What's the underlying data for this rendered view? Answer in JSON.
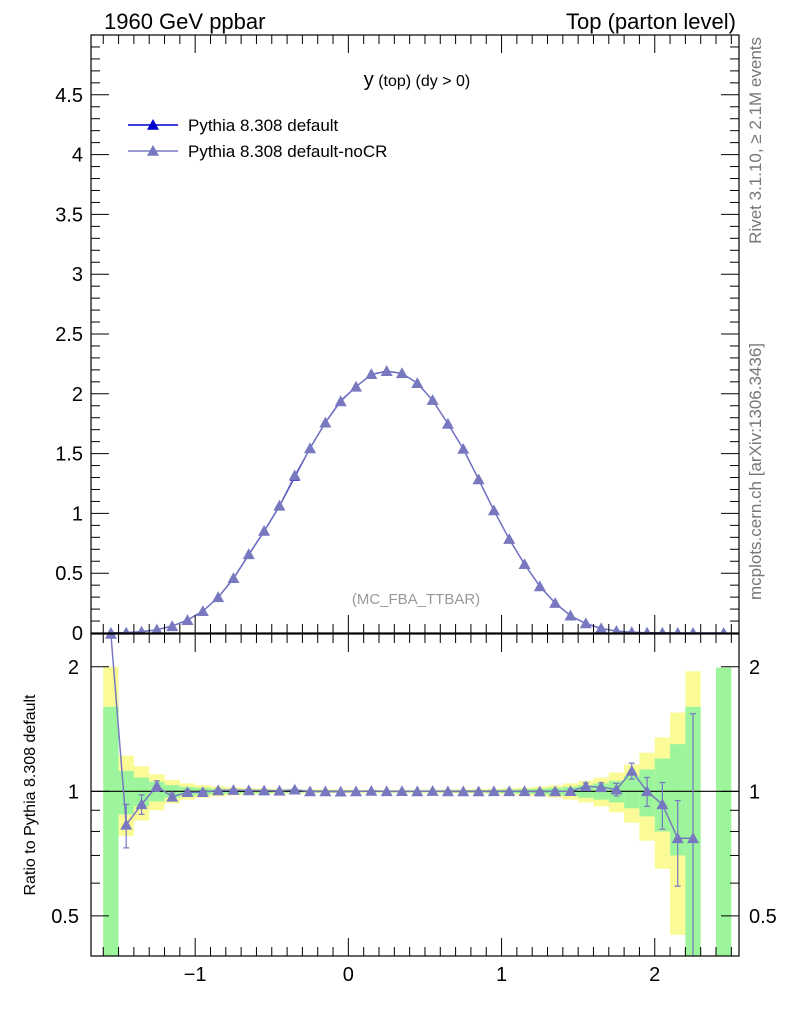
{
  "header": {
    "left": "1960 GeV ppbar",
    "right": "Top (parton level)"
  },
  "side_labels": {
    "rivet": "Rivet 3.1.10, ≥ 2.1M events",
    "mcplots": "mcplots.cern.ch [arXiv:1306.3436]"
  },
  "plot_title": {
    "main": "y",
    "sub": " (top) (dy > 0)"
  },
  "watermark": "(MC_FBA_TTBAR)",
  "ratio_ylabel": "Ratio to Pythia 8.308 default",
  "colors": {
    "default": "#0000cc",
    "nocr": "#7878c0",
    "band_green": "#9cf59c",
    "band_yellow": "#fafa96"
  },
  "chart_data": [
    {
      "type": "line",
      "xlim": [
        -1.68,
        2.55
      ],
      "ylim": [
        0,
        5
      ],
      "yticks": [
        0,
        0.5,
        1,
        1.5,
        2,
        2.5,
        3,
        3.5,
        4,
        4.5
      ],
      "yticklabels": [
        "0",
        "0.5",
        "1",
        "1.5",
        "2",
        "2.5",
        "3",
        "3.5",
        "4",
        "4.5"
      ],
      "legend_position": "top-left",
      "x": [
        -1.55,
        -1.45,
        -1.35,
        -1.25,
        -1.15,
        -1.05,
        -0.95,
        -0.85,
        -0.75,
        -0.65,
        -0.55,
        -0.45,
        -0.35,
        -0.25,
        -0.15,
        -0.05,
        0.05,
        0.15,
        0.25,
        0.35,
        0.45,
        0.55,
        0.65,
        0.75,
        0.85,
        0.95,
        1.05,
        1.15,
        1.25,
        1.35,
        1.45,
        1.55,
        1.65,
        1.75,
        1.85,
        1.95,
        2.05,
        2.15,
        2.25,
        2.45
      ],
      "series": [
        {
          "name": "Pythia 8.308 default",
          "values": [
            0.0005,
            0.003,
            0.011,
            0.027,
            0.058,
            0.108,
            0.183,
            0.297,
            0.455,
            0.655,
            0.85,
            1.06,
            1.305,
            1.545,
            1.76,
            1.94,
            2.06,
            2.16,
            2.19,
            2.17,
            2.09,
            1.945,
            1.75,
            1.54,
            1.285,
            1.025,
            0.785,
            0.575,
            0.39,
            0.25,
            0.145,
            0.078,
            0.038,
            0.016,
            0.006,
            0.002,
            0.0007,
            0.0002,
            5e-05,
            1e-05
          ]
        },
        {
          "name": "Pythia 8.308 default-noCR",
          "values": [
            0.0012,
            0.0025,
            0.0102,
            0.0278,
            0.0562,
            0.1074,
            0.1819,
            0.2988,
            0.4582,
            0.6582,
            0.853,
            1.0636,
            1.3165,
            1.5435,
            1.7582,
            1.9363,
            2.0584,
            2.164,
            2.1893,
            2.1715,
            2.089,
            1.9473,
            1.7484,
            1.5387,
            1.2842,
            1.0247,
            0.7849,
            0.5752,
            0.3894,
            0.2499,
            0.1451,
            0.0802,
            0.0389,
            0.0162,
            0.0067,
            0.002,
            0.00065,
            0.00015,
            3.9e-05,
            1e-05
          ]
        }
      ]
    },
    {
      "type": "line",
      "xlim": [
        -1.68,
        2.55
      ],
      "ylim": [
        0.4,
        2.4
      ],
      "log_scale_y": true,
      "yticks": [
        0.5,
        1,
        2
      ],
      "yticklabels": [
        "0.5",
        "1",
        "2"
      ],
      "xticks": [
        -1,
        0,
        1,
        2
      ],
      "xticklabels": [
        "−1",
        "0",
        "1",
        "2"
      ],
      "ylabel": "Ratio to Pythia 8.308 default",
      "x": [
        -1.55,
        -1.45,
        -1.35,
        -1.25,
        -1.15,
        -1.05,
        -0.95,
        -0.85,
        -0.75,
        -0.65,
        -0.55,
        -0.45,
        -0.35,
        -0.25,
        -0.15,
        -0.05,
        0.05,
        0.15,
        0.25,
        0.35,
        0.45,
        0.55,
        0.65,
        0.75,
        0.85,
        0.95,
        1.05,
        1.15,
        1.25,
        1.35,
        1.45,
        1.55,
        1.65,
        1.75,
        1.85,
        1.95,
        2.05,
        2.15,
        2.25,
        2.45
      ],
      "band_green": [
        0.6,
        0.12,
        0.08,
        0.055,
        0.035,
        0.025,
        0.02,
        0.015,
        0.012,
        0.01,
        0.01,
        0.008,
        0.008,
        0.006,
        0.006,
        0.005,
        0.005,
        0.005,
        0.005,
        0.005,
        0.005,
        0.005,
        0.006,
        0.006,
        0.007,
        0.008,
        0.01,
        0.012,
        0.015,
        0.02,
        0.025,
        0.035,
        0.045,
        0.06,
        0.09,
        0.13,
        0.2,
        0.3,
        0.6,
        0.99
      ],
      "band_yellow": [
        1.0,
        0.22,
        0.15,
        0.1,
        0.065,
        0.045,
        0.035,
        0.028,
        0.022,
        0.018,
        0.016,
        0.014,
        0.012,
        0.01,
        0.01,
        0.009,
        0.009,
        0.009,
        0.009,
        0.009,
        0.009,
        0.01,
        0.01,
        0.011,
        0.012,
        0.014,
        0.017,
        0.02,
        0.026,
        0.034,
        0.045,
        0.06,
        0.08,
        0.11,
        0.16,
        0.24,
        0.35,
        0.55,
        0.95,
        0.99
      ],
      "series": [
        {
          "name": "Pythia 8.308 default-noCR",
          "values": [
            2.4,
            0.83,
            0.93,
            1.03,
            0.97,
            0.995,
            0.995,
            1.005,
            1.007,
            1.005,
            1.004,
            1.003,
            1.009,
            0.999,
            0.999,
            0.998,
            0.999,
            1.002,
            0.9997,
            1.0007,
            0.9995,
            1.0012,
            0.9991,
            0.9992,
            0.9994,
            0.9997,
            0.9999,
            1.0003,
            0.9985,
            0.9996,
            1.0007,
            1.028,
            1.024,
            1.01,
            1.12,
            1.0,
            0.93,
            0.77,
            0.77,
            null
          ],
          "errors": [
            0,
            0.1,
            0.05,
            0.03,
            0.02,
            0.012,
            0.01,
            0.008,
            0.006,
            0.005,
            0.005,
            0.004,
            0.004,
            0.003,
            0.003,
            0.003,
            0.003,
            0.003,
            0.003,
            0.003,
            0.003,
            0.003,
            0.003,
            0.003,
            0.004,
            0.004,
            0.005,
            0.006,
            0.008,
            0.01,
            0.012,
            0.02,
            0.025,
            0.035,
            0.05,
            0.08,
            0.12,
            0.18,
            0.77,
            0
          ]
        }
      ]
    }
  ]
}
